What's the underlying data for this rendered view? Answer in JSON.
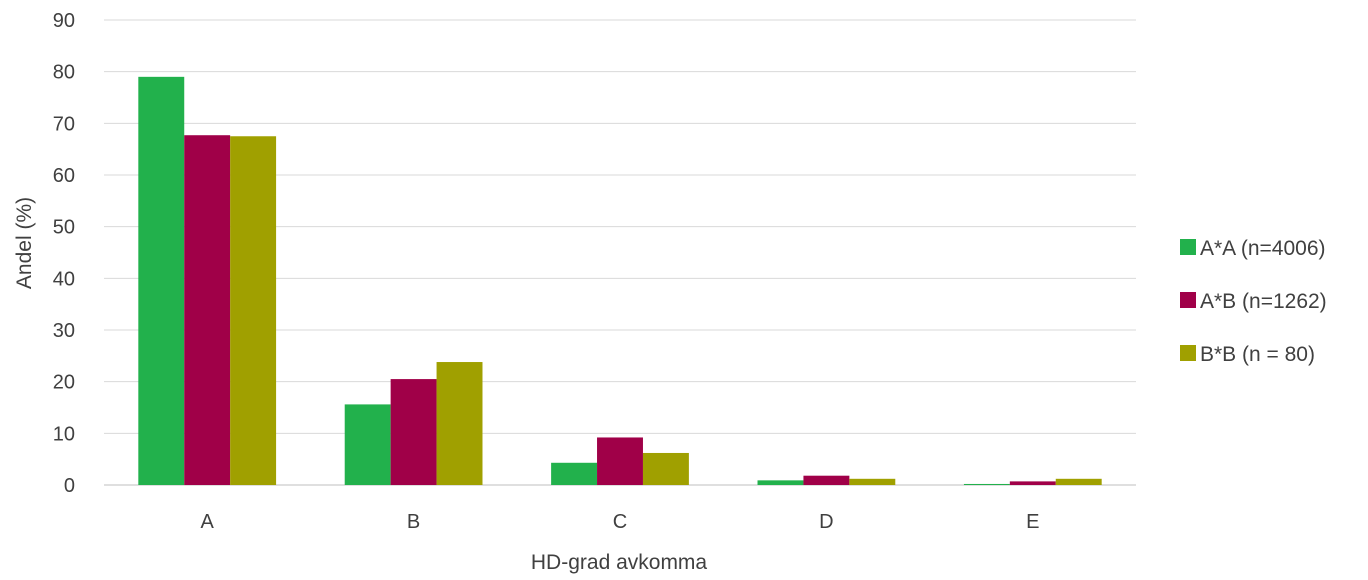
{
  "chart_data": {
    "type": "bar",
    "categories": [
      "A",
      "B",
      "C",
      "D",
      "E"
    ],
    "series": [
      {
        "name": "A*A (n=4006)",
        "color": "#22b14c",
        "values": [
          79.0,
          15.6,
          4.3,
          0.9,
          0.2
        ]
      },
      {
        "name": "A*B (n=1262)",
        "color": "#a00048",
        "values": [
          67.7,
          20.5,
          9.2,
          1.8,
          0.7
        ]
      },
      {
        "name": "B*B (n = 80)",
        "color": "#a0a000",
        "values": [
          67.5,
          23.8,
          6.2,
          1.2,
          1.2
        ]
      }
    ],
    "xlabel": "HD-grad avkomma",
    "ylabel": "Andel (%)",
    "ylim": [
      0,
      90
    ],
    "yticks": [
      "0",
      "10",
      "20",
      "30",
      "40",
      "50",
      "60",
      "70",
      "80",
      "90"
    ],
    "grid": true,
    "legend_position": "right"
  }
}
